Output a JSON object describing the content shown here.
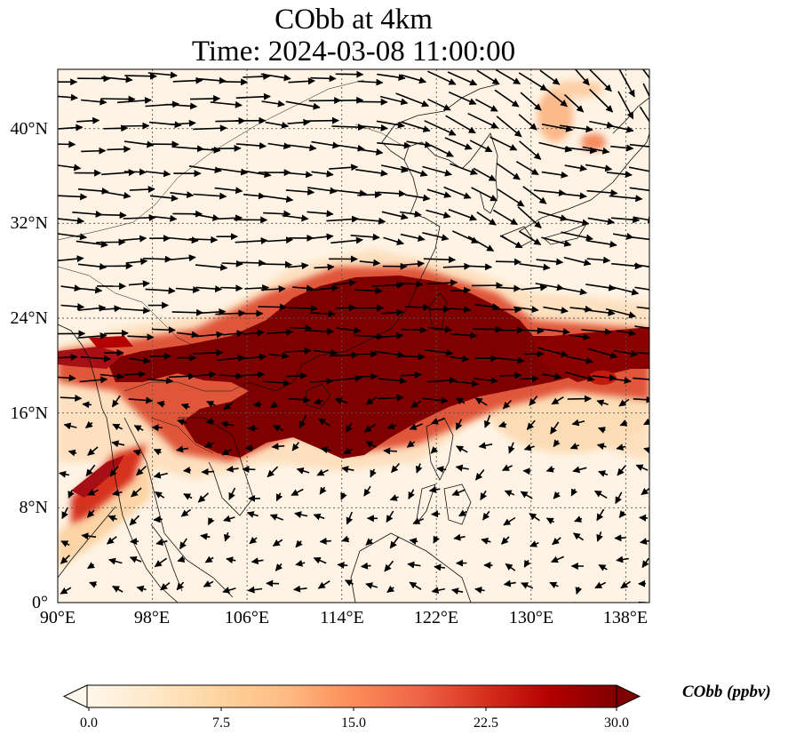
{
  "title": {
    "line1": "CObb at 4km",
    "line2": "Time: 2024-03-08 11:00:00"
  },
  "map": {
    "lon_range": [
      90,
      140
    ],
    "lat_range": [
      0,
      45
    ],
    "lon_ticks": [
      "90°E",
      "98°E",
      "106°E",
      "114°E",
      "122°E",
      "130°E",
      "138°E"
    ],
    "lat_ticks": [
      "0°",
      "8°N",
      "16°N",
      "24°N",
      "32°N",
      "40°N"
    ],
    "gridlines": true,
    "coastlines": true,
    "wind_vectors": true,
    "colormap": "OrRd"
  },
  "colorbar": {
    "label": "CObb (ppbv)",
    "min": 0,
    "max": 30,
    "ticks": [
      "0.0",
      "7.5",
      "15.0",
      "22.5",
      "30.0"
    ],
    "extend": "both",
    "colors": [
      "#fff7ec",
      "#fee8c8",
      "#fdd49e",
      "#fdbb84",
      "#fc8d59",
      "#ef6548",
      "#d7301f",
      "#b30000",
      "#7f0000"
    ]
  }
}
